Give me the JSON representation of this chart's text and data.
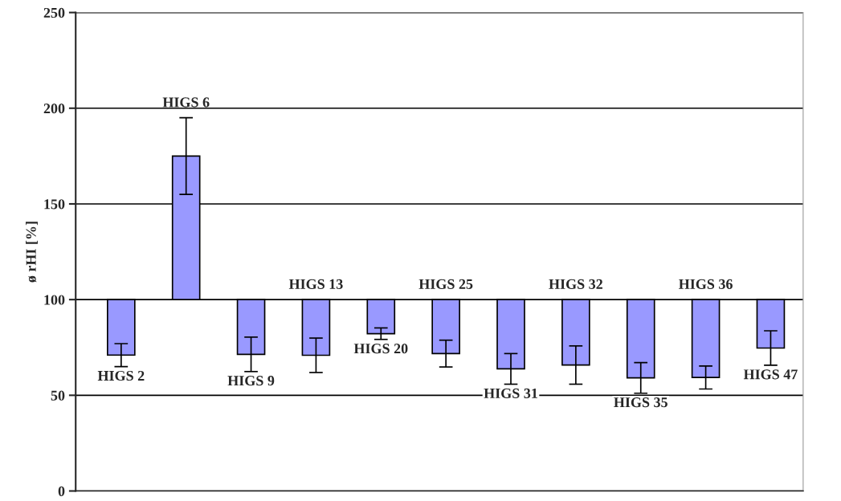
{
  "chart_data": {
    "type": "bar",
    "ylabel": "ø rHI [%]",
    "categories": [
      "HIGS 2",
      "HIGS 6",
      "HIGS 9",
      "HIGS 13",
      "HIGS 20",
      "HIGS 25",
      "HIGS 31",
      "HIGS 32",
      "HIGS 35",
      "HIGS 36",
      "HIGS 47"
    ],
    "base": [
      100,
      100,
      100,
      100,
      100,
      100,
      100,
      100,
      100,
      100,
      100
    ],
    "values": [
      -29,
      75,
      -28.6,
      -29.1,
      -17.8,
      -28.2,
      -36.2,
      -34.2,
      -40.9,
      -40.7,
      -25.3
    ],
    "errors": [
      6,
      20,
      9,
      9,
      3,
      7,
      8,
      10,
      8,
      6,
      9
    ],
    "color": "#9999ff",
    "ylim": [
      0,
      250
    ],
    "yticks": [
      0,
      50,
      100,
      150,
      200,
      250
    ],
    "grid": "y",
    "tick_labels": "y"
  }
}
